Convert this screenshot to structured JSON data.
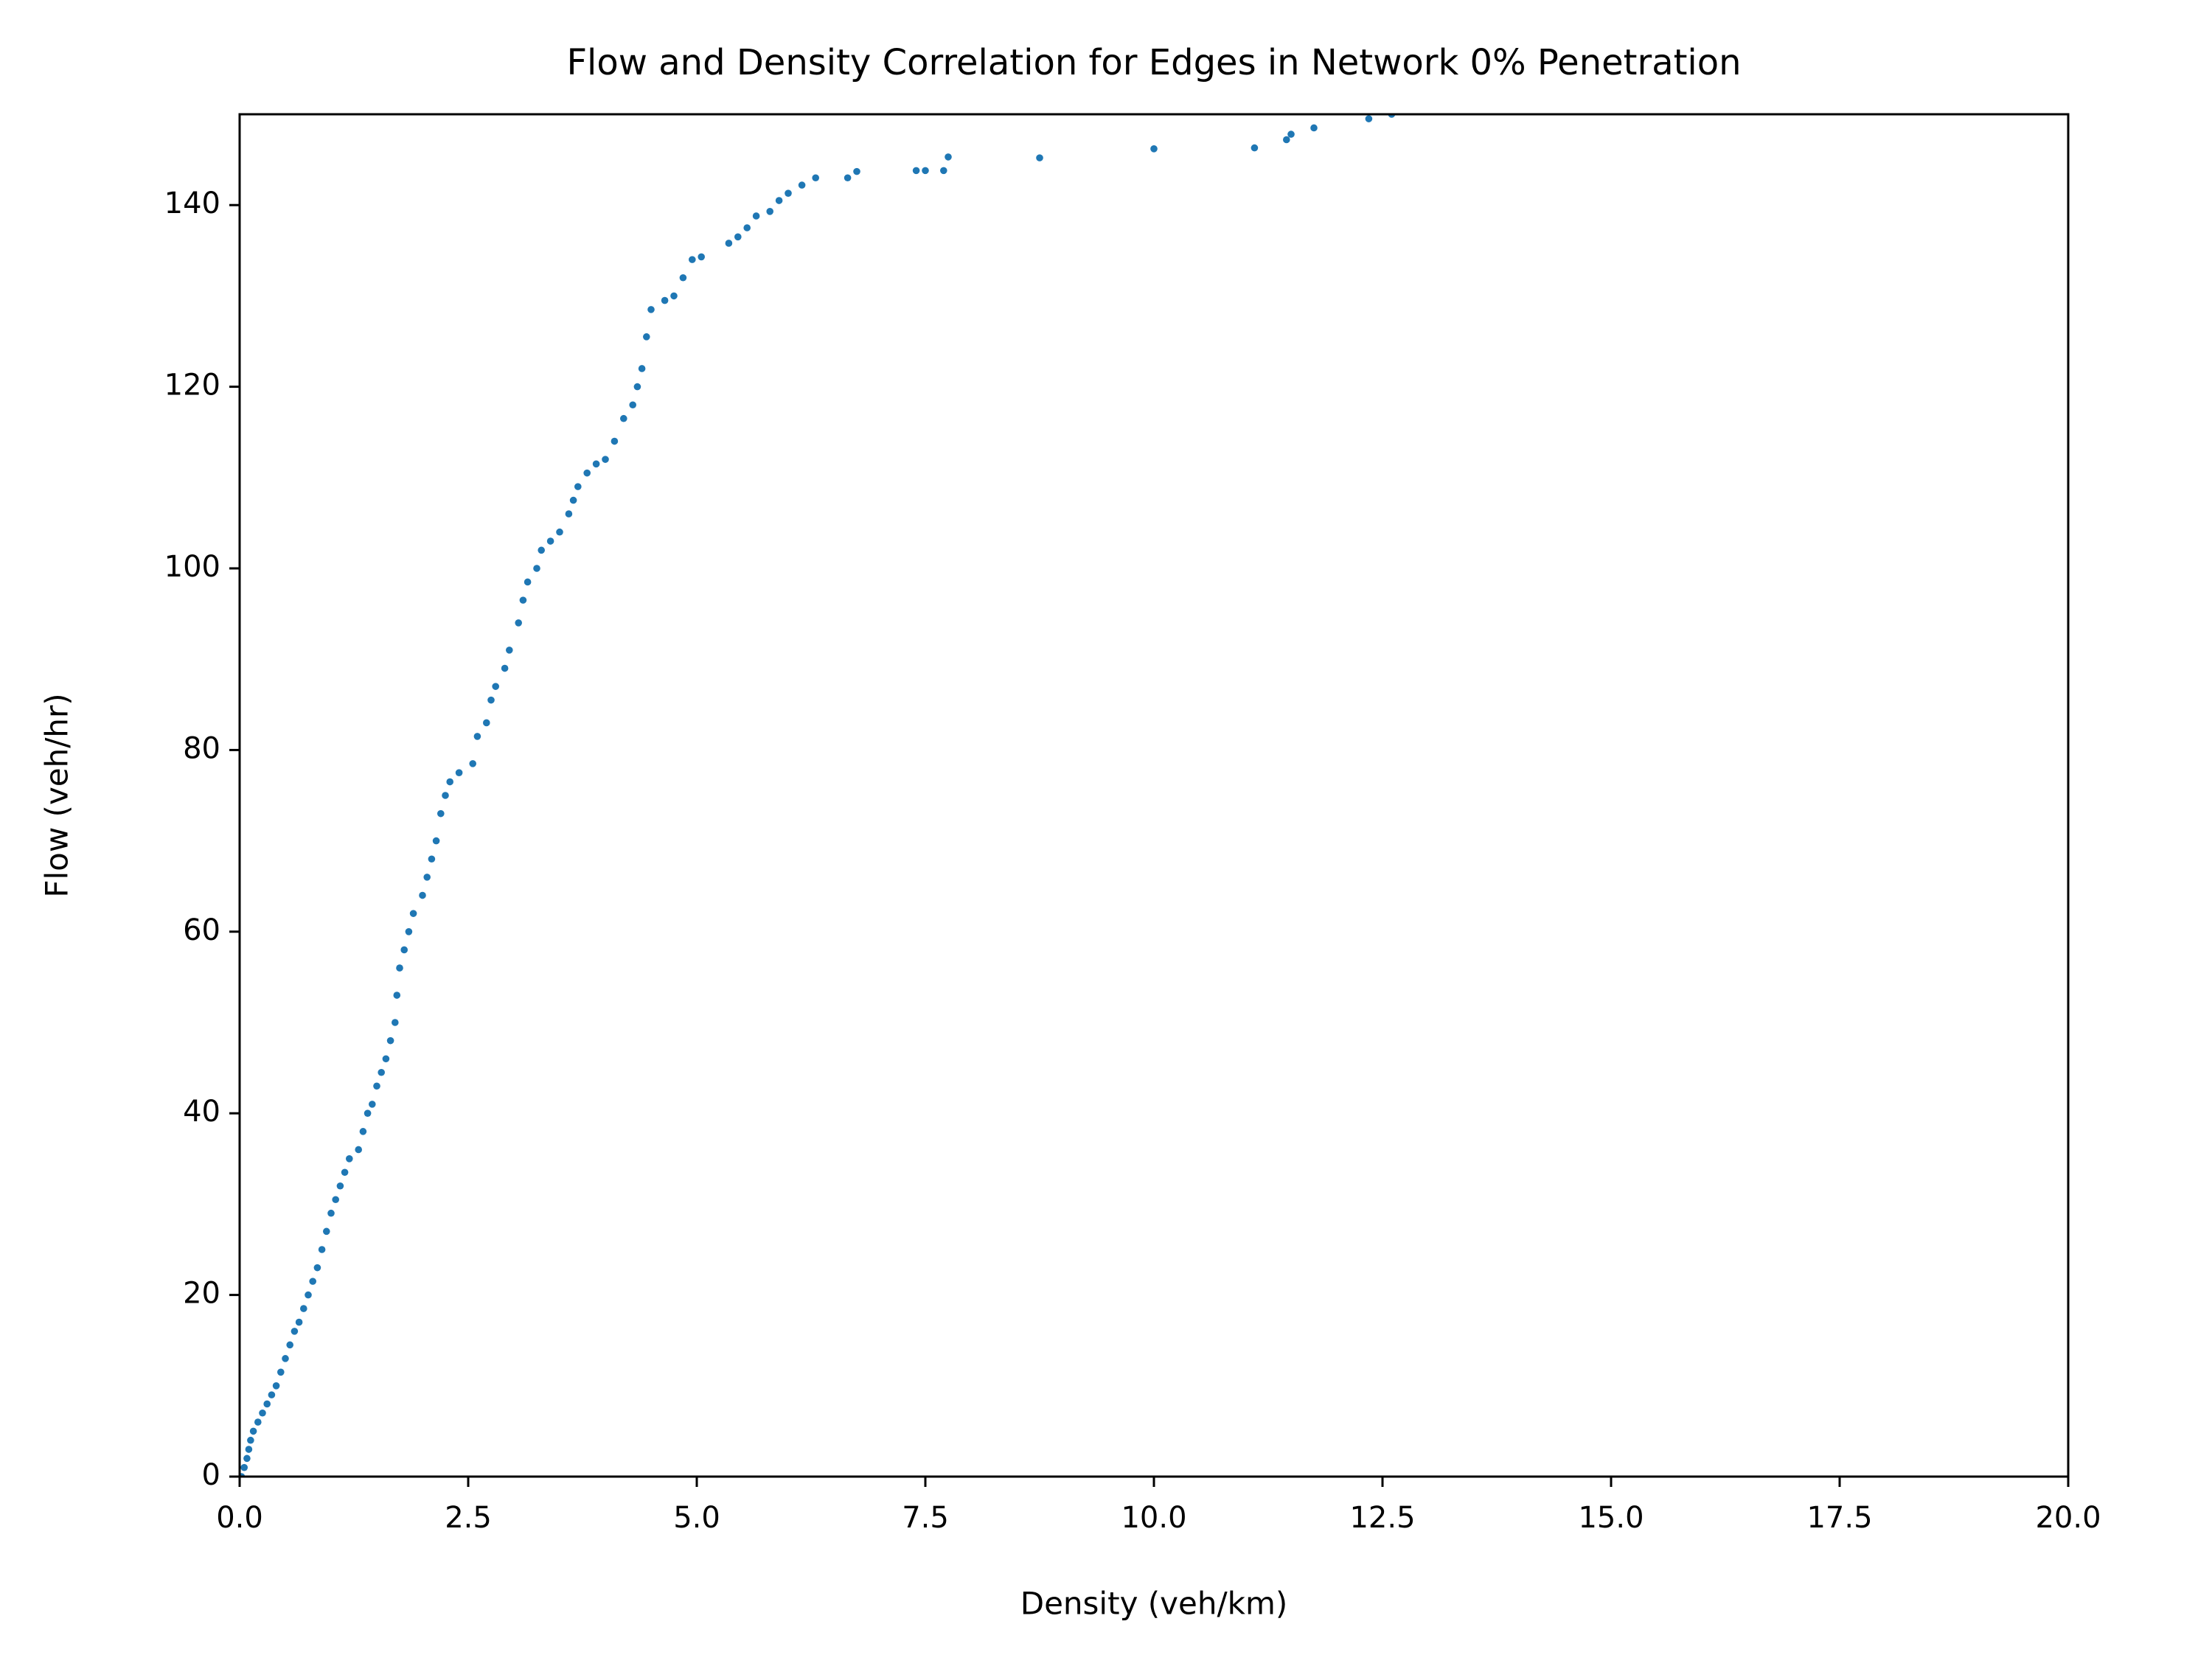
{
  "chart_data": {
    "type": "scatter",
    "title": "Flow and Density Correlation for Edges in Network 0% Penetration",
    "x_label": "Density (veh/km)",
    "y_label": "Flow (veh/hr)",
    "color": "#1f77b4",
    "xlim": [
      0,
      20
    ],
    "ylim": [
      0,
      150
    ],
    "xticks": [
      {
        "value": 0,
        "label": "0.0"
      },
      2.5,
      {
        "value": 5,
        "label": "5.0"
      },
      7.5,
      {
        "value": 10,
        "label": "10.0"
      },
      12.5,
      {
        "value": 15,
        "label": "15.0"
      },
      17.5,
      {
        "value": 20,
        "label": "20.0"
      }
    ],
    "yticks": [
      0,
      20,
      40,
      60,
      80,
      100,
      120,
      140
    ],
    "x": [
      0.02,
      0.05,
      0.08,
      0.1,
      0.12,
      0.15,
      0.2,
      0.25,
      0.3,
      0.35,
      0.4,
      0.45,
      0.5,
      0.55,
      0.6,
      0.65,
      0.7,
      0.75,
      0.8,
      0.85,
      0.9,
      0.95,
      1.0,
      1.05,
      1.1,
      1.15,
      1.2,
      1.3,
      1.35,
      1.4,
      1.45,
      1.5,
      1.55,
      1.6,
      1.65,
      1.7,
      1.72,
      1.75,
      1.8,
      1.85,
      1.9,
      2.0,
      2.05,
      2.1,
      2.15,
      2.2,
      2.25,
      2.3,
      2.4,
      2.55,
      2.6,
      2.7,
      2.75,
      2.8,
      2.9,
      2.95,
      3.05,
      3.1,
      3.15,
      3.25,
      3.3,
      3.4,
      3.5,
      3.6,
      3.65,
      3.7,
      3.8,
      3.9,
      4.0,
      4.1,
      4.2,
      4.3,
      4.35,
      4.4,
      4.45,
      4.5,
      4.65,
      4.75,
      4.85,
      4.95,
      5.05,
      5.35,
      5.45,
      5.55,
      5.65,
      5.8,
      5.9,
      6.0,
      6.15,
      6.3,
      6.65,
      6.75,
      7.4,
      7.5,
      7.7,
      7.75,
      8.75,
      10.0,
      11.1,
      11.45,
      11.5,
      11.75,
      12.35,
      12.6
    ],
    "y": [
      0,
      1,
      2,
      3,
      4,
      5,
      6,
      7,
      8,
      9,
      10,
      11.5,
      13,
      14.5,
      16,
      17,
      18.5,
      20,
      21.5,
      23,
      25,
      27,
      29,
      30.5,
      32,
      33.5,
      35,
      36,
      38,
      40,
      41,
      43,
      44.5,
      46,
      48,
      50,
      53,
      56,
      58,
      60,
      62,
      64,
      66,
      68,
      70,
      73,
      75,
      76.5,
      77.5,
      78.5,
      81.5,
      83,
      85.5,
      87,
      89,
      91,
      94,
      96.5,
      98.5,
      100,
      102,
      103,
      104,
      106,
      107.5,
      109,
      110.5,
      111.5,
      112,
      114,
      116.5,
      118,
      120,
      122,
      125.5,
      128.5,
      129.5,
      130,
      132,
      134,
      134.3,
      135.8,
      136.5,
      137.5,
      138.8,
      139.3,
      140.5,
      141.3,
      142.2,
      143,
      143,
      143.7,
      143.8,
      143.8,
      143.8,
      145.3,
      145.2,
      146.2,
      146.3,
      147.2,
      147.8,
      148.5,
      149.5,
      150
    ]
  }
}
